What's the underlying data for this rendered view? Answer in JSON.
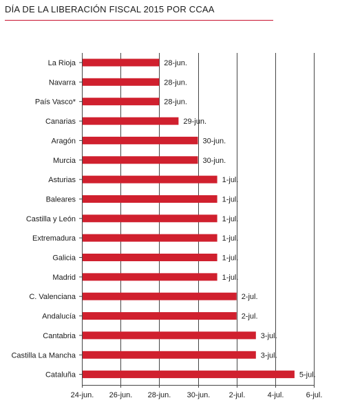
{
  "chart_data": {
    "type": "bar",
    "orientation": "horizontal",
    "title": "DÍA DE LA LIBERACIÓN FISCAL 2015 POR CCAA",
    "categories": [
      "La Rioja",
      "Navarra",
      "País Vasco*",
      "Canarias",
      "Aragón",
      "Murcia",
      "Asturias",
      "Baleares",
      "Castilla y León",
      "Extremadura",
      "Galicia",
      "Madrid",
      "C. Valenciana",
      "Andalucía",
      "Cantabria",
      "Castilla La Mancha",
      "Cataluña"
    ],
    "values": [
      "2015-06-28",
      "2015-06-28",
      "2015-06-28",
      "2015-06-29",
      "2015-06-30",
      "2015-06-30",
      "2015-07-01",
      "2015-07-01",
      "2015-07-01",
      "2015-07-01",
      "2015-07-01",
      "2015-07-01",
      "2015-07-02",
      "2015-07-02",
      "2015-07-03",
      "2015-07-03",
      "2015-07-05"
    ],
    "data_labels": [
      "28-jun.",
      "28-jun.",
      "28-jun.",
      "29-jun.",
      "30-jun.",
      "30-jun.",
      "1-jul.",
      "1-jul.",
      "1-jul.",
      "1-jul.",
      "1-jul.",
      "1-jul.",
      "2-jul.",
      "2-jul.",
      "3-jul.",
      "3-jul.",
      "5-jul."
    ],
    "xlim": [
      "2015-06-24",
      "2015-07-06"
    ],
    "xticks": [
      "2015-06-24",
      "2015-06-26",
      "2015-06-28",
      "2015-06-30",
      "2015-07-02",
      "2015-07-04",
      "2015-07-06"
    ],
    "xtick_labels": [
      "24-jun.",
      "26-jun.",
      "28-jun.",
      "30-jun.",
      "2-jul.",
      "4-jul.",
      "6-jul."
    ],
    "grid": true,
    "colors": {
      "bar": "#d0202e",
      "accent_rule": "#c8102e",
      "grid": "#444444",
      "text": "#1a1a1a"
    }
  }
}
